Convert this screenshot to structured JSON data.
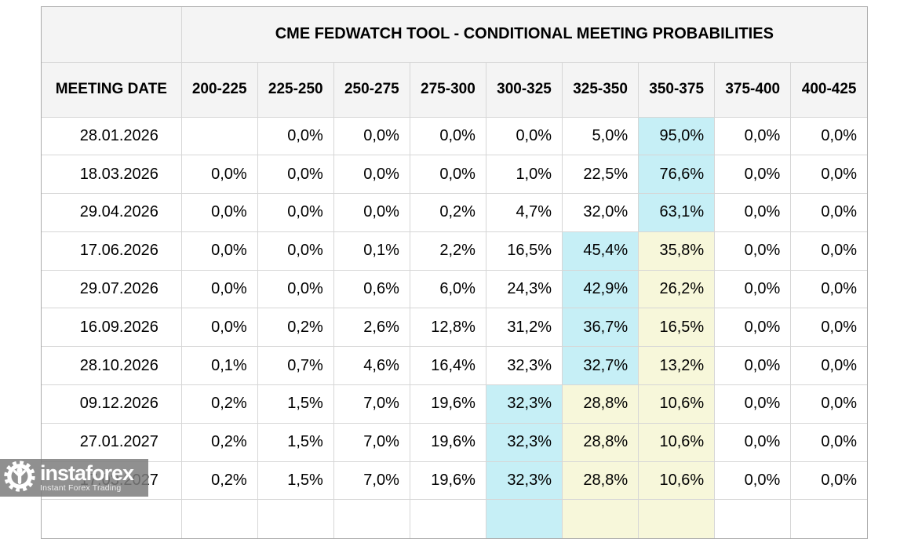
{
  "table": {
    "title": "CME FEDWATCH TOOL - CONDITIONAL MEETING PROBABILITIES",
    "meeting_date_header": "MEETING DATE",
    "rate_headers": [
      "200-225",
      "225-250",
      "250-275",
      "275-300",
      "300-325",
      "325-350",
      "350-375",
      "375-400",
      "400-425"
    ],
    "rows": [
      {
        "date": "28.01.2026",
        "v": [
          "",
          "0,0%",
          "0,0%",
          "0,0%",
          "0,0%",
          "5,0%",
          "95,0%",
          "0,0%",
          "0,0%"
        ],
        "h": [
          "",
          "",
          "",
          "",
          "",
          "",
          "c",
          "",
          ""
        ]
      },
      {
        "date": "18.03.2026",
        "v": [
          "0,0%",
          "0,0%",
          "0,0%",
          "0,0%",
          "1,0%",
          "22,5%",
          "76,6%",
          "0,0%",
          "0,0%"
        ],
        "h": [
          "",
          "",
          "",
          "",
          "",
          "",
          "c",
          "",
          ""
        ]
      },
      {
        "date": "29.04.2026",
        "v": [
          "0,0%",
          "0,0%",
          "0,0%",
          "0,2%",
          "4,7%",
          "32,0%",
          "63,1%",
          "0,0%",
          "0,0%"
        ],
        "h": [
          "",
          "",
          "",
          "",
          "",
          "",
          "c",
          "",
          ""
        ]
      },
      {
        "date": "17.06.2026",
        "v": [
          "0,0%",
          "0,0%",
          "0,1%",
          "2,2%",
          "16,5%",
          "45,4%",
          "35,8%",
          "0,0%",
          "0,0%"
        ],
        "h": [
          "",
          "",
          "",
          "",
          "",
          "c",
          "y",
          "",
          ""
        ]
      },
      {
        "date": "29.07.2026",
        "v": [
          "0,0%",
          "0,0%",
          "0,6%",
          "6,0%",
          "24,3%",
          "42,9%",
          "26,2%",
          "0,0%",
          "0,0%"
        ],
        "h": [
          "",
          "",
          "",
          "",
          "",
          "c",
          "y",
          "",
          ""
        ]
      },
      {
        "date": "16.09.2026",
        "v": [
          "0,0%",
          "0,2%",
          "2,6%",
          "12,8%",
          "31,2%",
          "36,7%",
          "16,5%",
          "0,0%",
          "0,0%"
        ],
        "h": [
          "",
          "",
          "",
          "",
          "",
          "c",
          "y",
          "",
          ""
        ]
      },
      {
        "date": "28.10.2026",
        "v": [
          "0,1%",
          "0,7%",
          "4,6%",
          "16,4%",
          "32,3%",
          "32,7%",
          "13,2%",
          "0,0%",
          "0,0%"
        ],
        "h": [
          "",
          "",
          "",
          "",
          "",
          "c",
          "y",
          "",
          ""
        ]
      },
      {
        "date": "09.12.2026",
        "v": [
          "0,2%",
          "1,5%",
          "7,0%",
          "19,6%",
          "32,3%",
          "28,8%",
          "10,6%",
          "0,0%",
          "0,0%"
        ],
        "h": [
          "",
          "",
          "",
          "",
          "c",
          "y",
          "y",
          "",
          ""
        ]
      },
      {
        "date": "27.01.2027",
        "v": [
          "0,2%",
          "1,5%",
          "7,0%",
          "19,6%",
          "32,3%",
          "28,8%",
          "10,6%",
          "0,0%",
          "0,0%"
        ],
        "h": [
          "",
          "",
          "",
          "",
          "c",
          "y",
          "y",
          "",
          ""
        ]
      },
      {
        "date": "17.03.2027",
        "v": [
          "0,2%",
          "1,5%",
          "7,0%",
          "19,6%",
          "32,3%",
          "28,8%",
          "10,6%",
          "0,0%",
          "0,0%"
        ],
        "h": [
          "",
          "",
          "",
          "",
          "c",
          "y",
          "y",
          "",
          ""
        ]
      }
    ],
    "partial_row_h": [
      "",
      "",
      "",
      "",
      "c",
      "y",
      "y",
      "",
      ""
    ]
  },
  "watermark": {
    "brand": "instaforex",
    "tagline": "Instant Forex Trading"
  },
  "colors": {
    "cyan": "#c6eff6",
    "yellow": "#f7f7da",
    "header_bg": "#f4f4f4",
    "grid_border": "#d6d6d6",
    "outer_border": "#ababab",
    "watermark_bg": "rgba(124,124,124,0.85)"
  },
  "chart_data": {
    "type": "table",
    "title": "CME FEDWATCH TOOL - CONDITIONAL MEETING PROBABILITIES",
    "row_header": "MEETING DATE",
    "columns": [
      "200-225",
      "225-250",
      "250-275",
      "275-300",
      "300-325",
      "325-350",
      "350-375",
      "375-400",
      "400-425"
    ],
    "unit": "percent probability (comma decimal separator in display)",
    "rows": [
      {
        "meeting_date": "28.01.2026",
        "values": [
          null,
          0.0,
          0.0,
          0.0,
          0.0,
          5.0,
          95.0,
          0.0,
          0.0
        ],
        "highlight_cyan": [
          "350-375"
        ],
        "highlight_yellow": []
      },
      {
        "meeting_date": "18.03.2026",
        "values": [
          0.0,
          0.0,
          0.0,
          0.0,
          1.0,
          22.5,
          76.6,
          0.0,
          0.0
        ],
        "highlight_cyan": [
          "350-375"
        ],
        "highlight_yellow": []
      },
      {
        "meeting_date": "29.04.2026",
        "values": [
          0.0,
          0.0,
          0.0,
          0.2,
          4.7,
          32.0,
          63.1,
          0.0,
          0.0
        ],
        "highlight_cyan": [
          "350-375"
        ],
        "highlight_yellow": []
      },
      {
        "meeting_date": "17.06.2026",
        "values": [
          0.0,
          0.0,
          0.1,
          2.2,
          16.5,
          45.4,
          35.8,
          0.0,
          0.0
        ],
        "highlight_cyan": [
          "325-350"
        ],
        "highlight_yellow": [
          "350-375"
        ]
      },
      {
        "meeting_date": "29.07.2026",
        "values": [
          0.0,
          0.0,
          0.6,
          6.0,
          24.3,
          42.9,
          26.2,
          0.0,
          0.0
        ],
        "highlight_cyan": [
          "325-350"
        ],
        "highlight_yellow": [
          "350-375"
        ]
      },
      {
        "meeting_date": "16.09.2026",
        "values": [
          0.0,
          0.2,
          2.6,
          12.8,
          31.2,
          36.7,
          16.5,
          0.0,
          0.0
        ],
        "highlight_cyan": [
          "325-350"
        ],
        "highlight_yellow": [
          "350-375"
        ]
      },
      {
        "meeting_date": "28.10.2026",
        "values": [
          0.1,
          0.7,
          4.6,
          16.4,
          32.3,
          32.7,
          13.2,
          0.0,
          0.0
        ],
        "highlight_cyan": [
          "325-350"
        ],
        "highlight_yellow": [
          "350-375"
        ]
      },
      {
        "meeting_date": "09.12.2026",
        "values": [
          0.2,
          1.5,
          7.0,
          19.6,
          32.3,
          28.8,
          10.6,
          0.0,
          0.0
        ],
        "highlight_cyan": [
          "300-325"
        ],
        "highlight_yellow": [
          "325-350",
          "350-375"
        ]
      },
      {
        "meeting_date": "27.01.2027",
        "values": [
          0.2,
          1.5,
          7.0,
          19.6,
          32.3,
          28.8,
          10.6,
          0.0,
          0.0
        ],
        "highlight_cyan": [
          "300-325"
        ],
        "highlight_yellow": [
          "325-350",
          "350-375"
        ]
      },
      {
        "meeting_date": "17.03.2027",
        "values": [
          0.2,
          1.5,
          7.0,
          19.6,
          32.3,
          28.8,
          10.6,
          0.0,
          0.0
        ],
        "highlight_cyan": [
          "300-325"
        ],
        "highlight_yellow": [
          "325-350",
          "350-375"
        ]
      }
    ]
  }
}
